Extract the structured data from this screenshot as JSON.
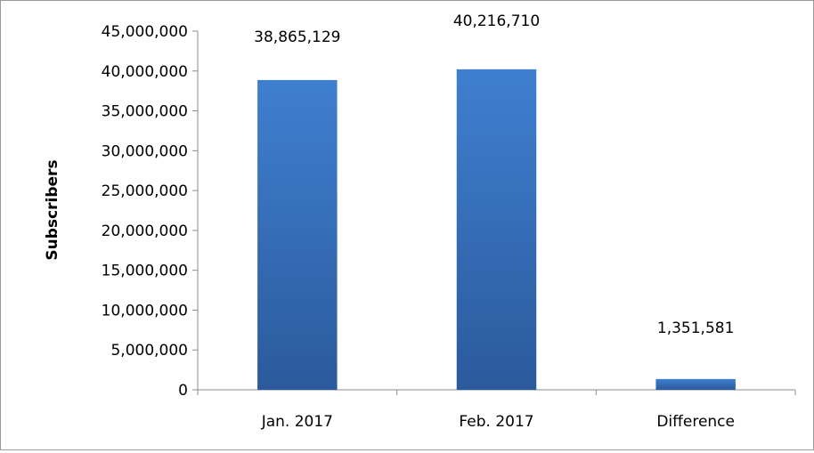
{
  "chart_data": {
    "type": "bar",
    "title": "",
    "xlabel": "",
    "ylabel": "Subscribers",
    "categories": [
      "Jan. 2017",
      "Feb. 2017",
      "Difference"
    ],
    "values": [
      38865129,
      40216710,
      1351581
    ],
    "data_labels": [
      "38,865,129",
      "40,216,710",
      "1,351,581"
    ],
    "ylim": [
      0,
      45000000
    ],
    "yticks": [
      0,
      5000000,
      10000000,
      15000000,
      20000000,
      25000000,
      30000000,
      35000000,
      40000000,
      45000000
    ],
    "ytick_labels": [
      "0",
      "5,000,000",
      "10,000,000",
      "15,000,000",
      "20,000,000",
      "25,000,000",
      "30,000,000",
      "35,000,000",
      "40,000,000",
      "45,000,000"
    ],
    "grid": false,
    "legend": "none",
    "colors": {
      "bar_top": "#3f7fd0",
      "bar_bottom": "#2b5a9c"
    }
  }
}
